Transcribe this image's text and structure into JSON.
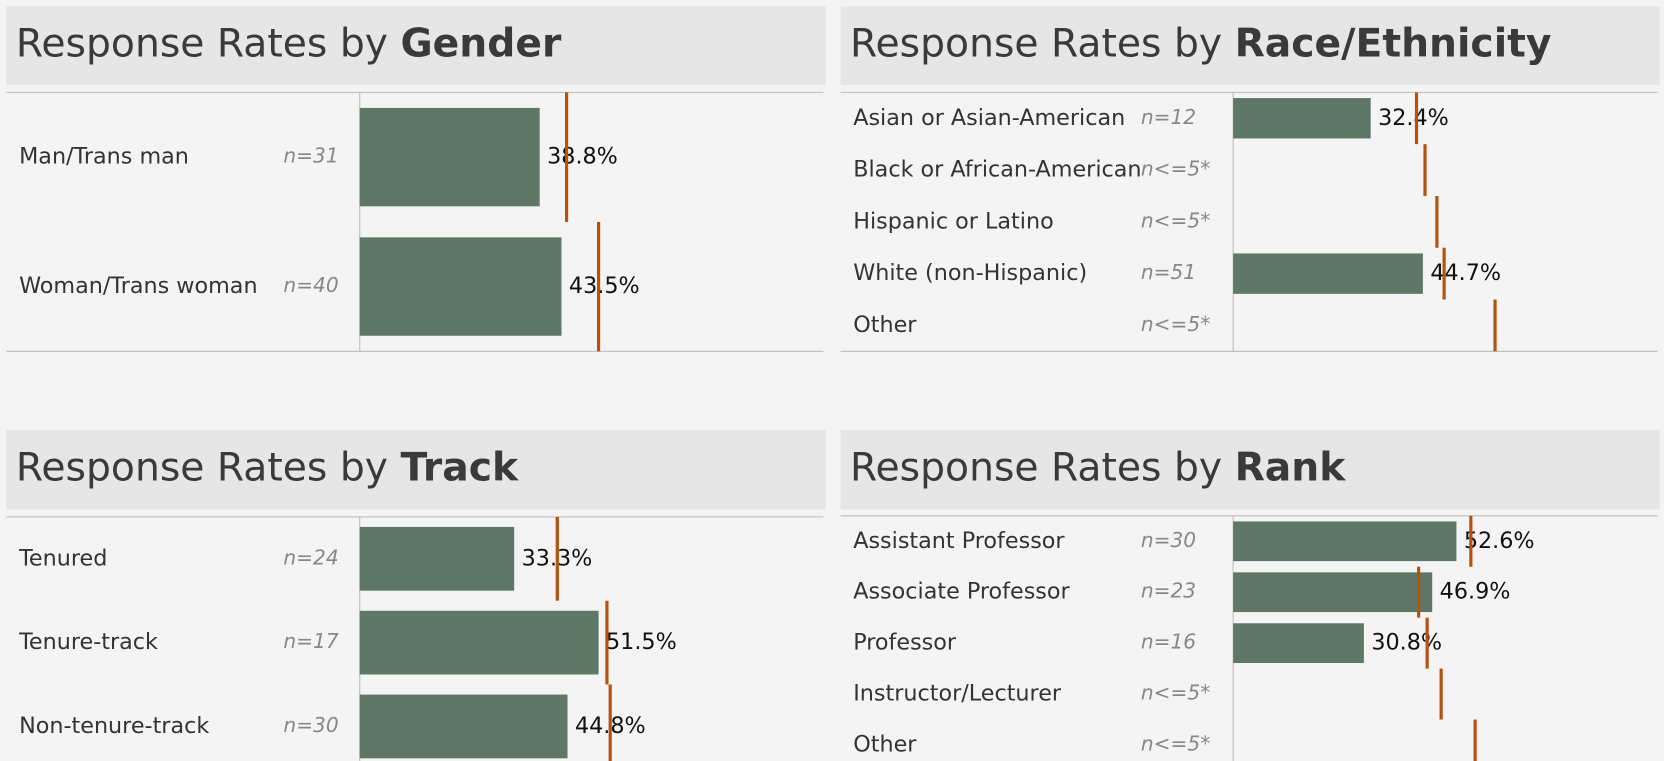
{
  "chart_data": [
    {
      "type": "bar",
      "title": {
        "text": "Response Rates by",
        "emphasis": "Gender"
      },
      "categories": [
        "Man/Trans man",
        "Woman/Trans woman"
      ],
      "n_labels": [
        "n=31",
        "n=40"
      ],
      "values": [
        38.8,
        43.5
      ],
      "value_labels": [
        "38.8%",
        "43.5%"
      ],
      "reference_values": [
        44.6,
        51.5
      ],
      "xlim": [
        0,
        100
      ],
      "color": "#5f7767",
      "reference_color": "#b5520f"
    },
    {
      "type": "bar",
      "title": {
        "text": "Response Rates by",
        "emphasis": "Race/Ethnicity"
      },
      "categories": [
        "Asian or Asian-American",
        "Black or African-American",
        "Hispanic or Latino",
        "White (non-Hispanic)",
        "Other"
      ],
      "n_labels": [
        "n=12",
        "n<=5*",
        "n<=5*",
        "n=51",
        "n<=5*"
      ],
      "values": [
        32.4,
        null,
        null,
        44.7,
        null
      ],
      "value_labels": [
        "32.4%",
        null,
        null,
        "44.7%",
        null
      ],
      "reference_values": [
        43.2,
        45.2,
        48.0,
        49.7,
        61.7
      ],
      "xlim": [
        0,
        100
      ],
      "color": "#5f7767",
      "reference_color": "#b5520f"
    },
    {
      "type": "bar",
      "title": {
        "text": "Response Rates by",
        "emphasis": "Track"
      },
      "categories": [
        "Tenured",
        "Tenure-track",
        "Non-tenure-track"
      ],
      "n_labels": [
        "n=24",
        "n=17",
        "n=30"
      ],
      "values": [
        33.3,
        51.5,
        44.8
      ],
      "value_labels": [
        "33.3%",
        "51.5%",
        "44.8%"
      ],
      "reference_values": [
        42.6,
        53.3,
        54.0
      ],
      "xlim": [
        0,
        100
      ],
      "color": "#5f7767",
      "reference_color": "#b5520f"
    },
    {
      "type": "bar",
      "title": {
        "text": "Response Rates by",
        "emphasis": "Rank"
      },
      "categories": [
        "Assistant Professor",
        "Associate Professor",
        "Professor",
        "Instructor/Lecturer",
        "Other"
      ],
      "n_labels": [
        "n=30",
        "n=23",
        "n=16",
        "n<=5*",
        "n<=5*"
      ],
      "values": [
        52.6,
        46.9,
        30.8,
        null,
        null
      ],
      "value_labels": [
        "52.6%",
        "46.9%",
        "30.8%",
        null,
        null
      ],
      "reference_values": [
        56.0,
        43.7,
        45.7,
        49.0,
        57.0
      ],
      "xlim": [
        0,
        100
      ],
      "color": "#5f7767",
      "reference_color": "#b5520f"
    }
  ]
}
